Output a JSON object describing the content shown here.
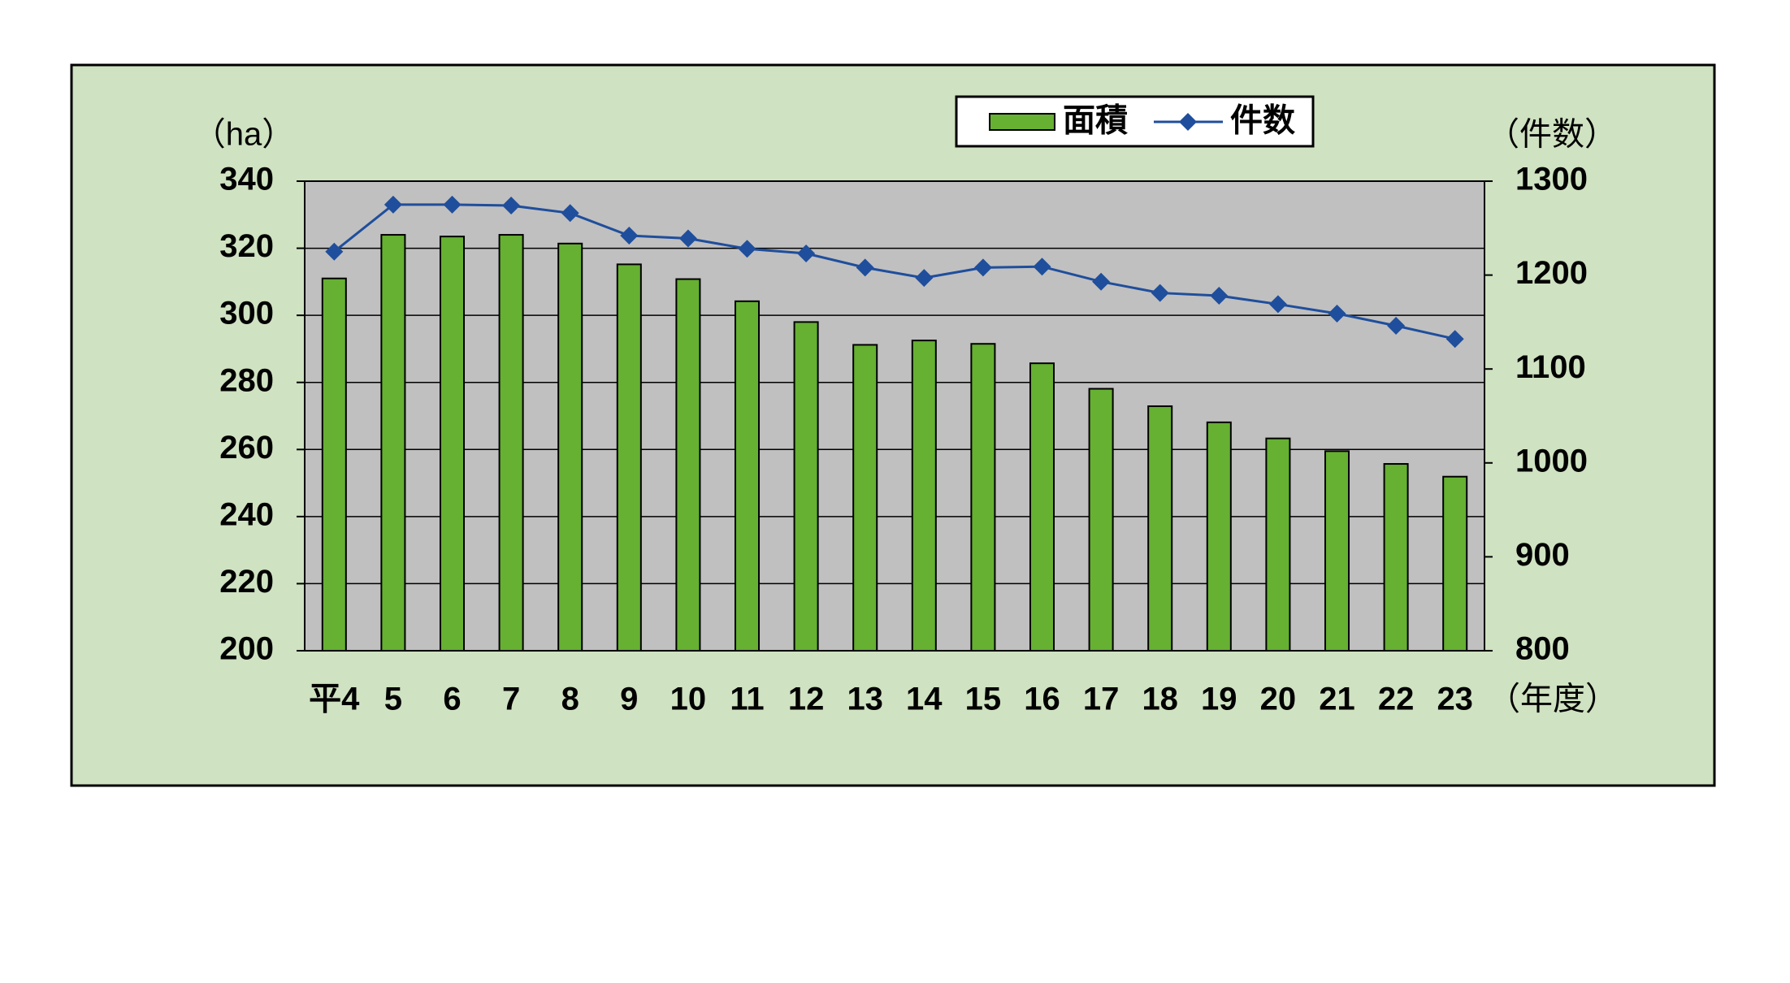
{
  "chart_data": {
    "type": "bar_line",
    "categories": [
      "平4",
      "5",
      "6",
      "7",
      "8",
      "9",
      "10",
      "11",
      "12",
      "13",
      "14",
      "15",
      "16",
      "17",
      "18",
      "19",
      "20",
      "21",
      "22",
      "23"
    ],
    "x_unit_label": "（年度）",
    "y_label": "（ha）",
    "y2_label": "（件数）",
    "ylim": [
      200,
      340
    ],
    "yticks": [
      200,
      220,
      240,
      260,
      280,
      300,
      320,
      340
    ],
    "y2lim": [
      800,
      1300
    ],
    "y2ticks": [
      800,
      900,
      1000,
      1100,
      1200,
      1300
    ],
    "grid": true,
    "legend": "top",
    "series": [
      {
        "name": "面積",
        "type": "bar",
        "color": "#66b032",
        "values": [
          311,
          324,
          323.5,
          324,
          321.4,
          315.2,
          310.8,
          304.2,
          298,
          291.2,
          292.5,
          291.5,
          285.7,
          278.1,
          272.9,
          268.1,
          263.3,
          259.5,
          255.7,
          251.9
        ]
      },
      {
        "name": "件数",
        "type": "line",
        "axis": "y2",
        "color": "#1f4e9c",
        "values": [
          1225,
          1275,
          1275,
          1274,
          1266,
          1242,
          1239,
          1228,
          1223,
          1208,
          1197,
          1208,
          1209,
          1193,
          1181,
          1178,
          1169,
          1159,
          1146,
          1132
        ]
      }
    ]
  }
}
